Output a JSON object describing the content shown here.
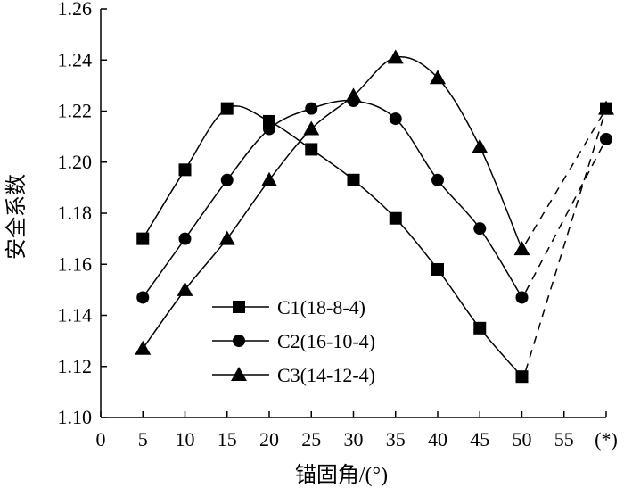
{
  "chart_data": {
    "type": "line",
    "xlabel": "锚固角/(°)",
    "ylabel": "安全系数",
    "x_categories": [
      "0",
      "5",
      "10",
      "15",
      "20",
      "25",
      "30",
      "35",
      "40",
      "45",
      "50",
      "55",
      "(*)"
    ],
    "xlim": [
      0,
      60
    ],
    "ylim": [
      1.1,
      1.26
    ],
    "y_ticks": [
      "1.10",
      "1.12",
      "1.14",
      "1.16",
      "1.18",
      "1.20",
      "1.22",
      "1.24",
      "1.26"
    ],
    "grid": false,
    "legend_position": "bottom-left",
    "series": [
      {
        "name": "C1(18-8-4)",
        "marker": "square",
        "x": [
          5,
          10,
          15,
          20,
          25,
          30,
          35,
          40,
          45,
          50
        ],
        "values": [
          1.17,
          1.197,
          1.221,
          1.216,
          1.205,
          1.193,
          1.178,
          1.158,
          1.135,
          1.116
        ],
        "star_value": 1.221
      },
      {
        "name": "C2(16-10-4)",
        "marker": "circle",
        "x": [
          5,
          10,
          15,
          20,
          25,
          30,
          35,
          40,
          45,
          50
        ],
        "values": [
          1.147,
          1.17,
          1.193,
          1.213,
          1.221,
          1.224,
          1.217,
          1.193,
          1.174,
          1.147
        ],
        "star_value": 1.209
      },
      {
        "name": "C3(14-12-4)",
        "marker": "triangle",
        "x": [
          5,
          10,
          15,
          20,
          25,
          30,
          35,
          40,
          45,
          50
        ],
        "values": [
          1.127,
          1.15,
          1.17,
          1.193,
          1.213,
          1.226,
          1.241,
          1.233,
          1.206,
          1.166
        ],
        "star_value": 1.221
      }
    ]
  }
}
